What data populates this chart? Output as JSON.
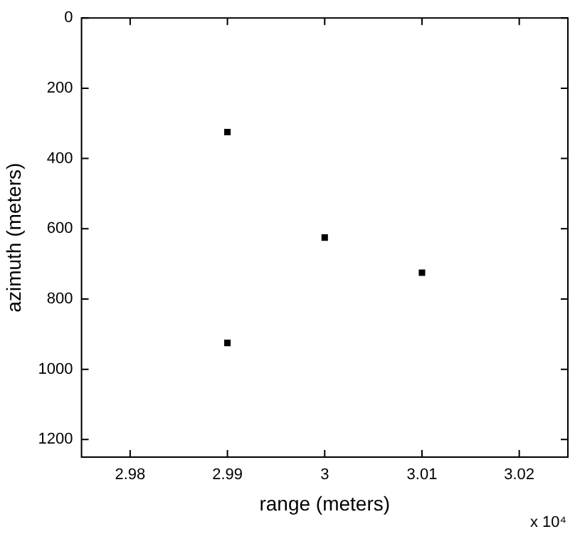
{
  "chart_data": {
    "type": "scatter",
    "xlabel": "range (meters)",
    "ylabel": "azimuth (meters)",
    "x": [
      2.99,
      3.0,
      3.01,
      2.99
    ],
    "series": [
      {
        "color": "#000000",
        "values": [
          325,
          625,
          725,
          925
        ]
      }
    ],
    "xlim": [
      2.975,
      3.025
    ],
    "xticks": [
      2.98,
      2.99,
      3,
      3.01,
      3.02
    ],
    "ylim": [
      1250,
      0
    ],
    "yticks": [
      0,
      200,
      400,
      600,
      800,
      1000,
      1200
    ],
    "marker": "square",
    "grid": false,
    "legend": false,
    "annotations": [
      "x 10⁴"
    ]
  }
}
